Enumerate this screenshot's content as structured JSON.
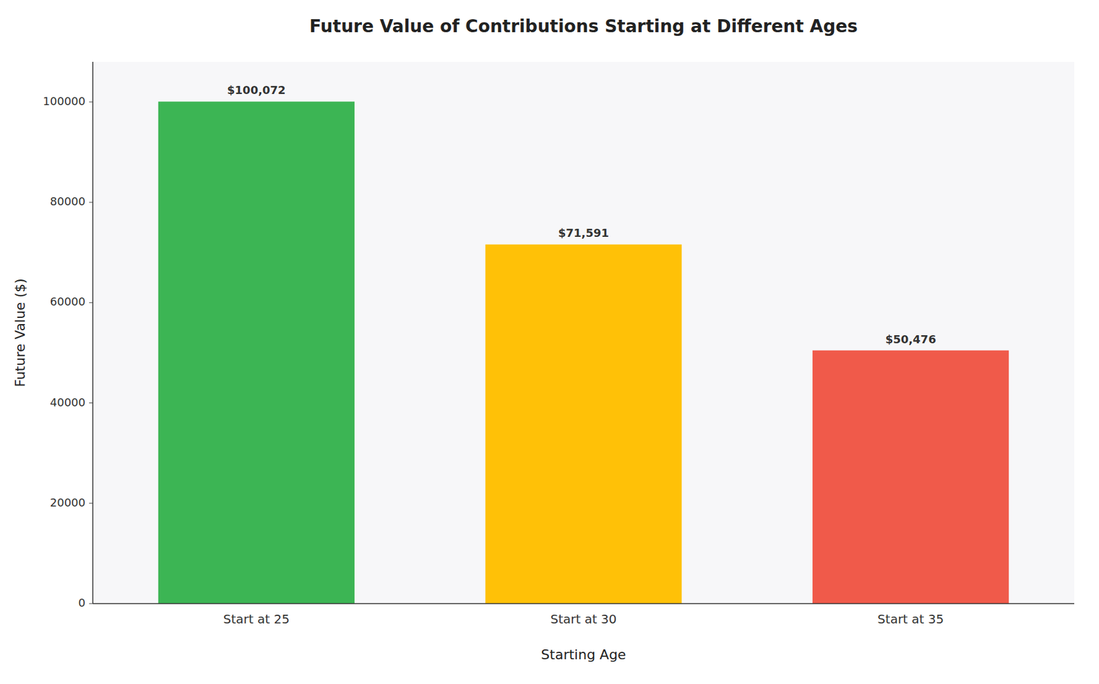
{
  "chart_data": {
    "type": "bar",
    "title": "Future Value of Contributions Starting at Different Ages",
    "xlabel": "Starting Age",
    "ylabel": "Future Value ($)",
    "categories": [
      "Start at 25",
      "Start at 30",
      "Start at 35"
    ],
    "values": [
      100072,
      71591,
      50476
    ],
    "value_labels": [
      "$100,072",
      "$71,591",
      "$50,476"
    ],
    "colors": [
      "#3cb554",
      "#ffc107",
      "#f05a4a"
    ],
    "data_labels": true,
    "ylim": [
      0,
      108000
    ],
    "yticks": [
      0,
      20000,
      40000,
      60000,
      80000,
      100000
    ],
    "grid": false
  }
}
